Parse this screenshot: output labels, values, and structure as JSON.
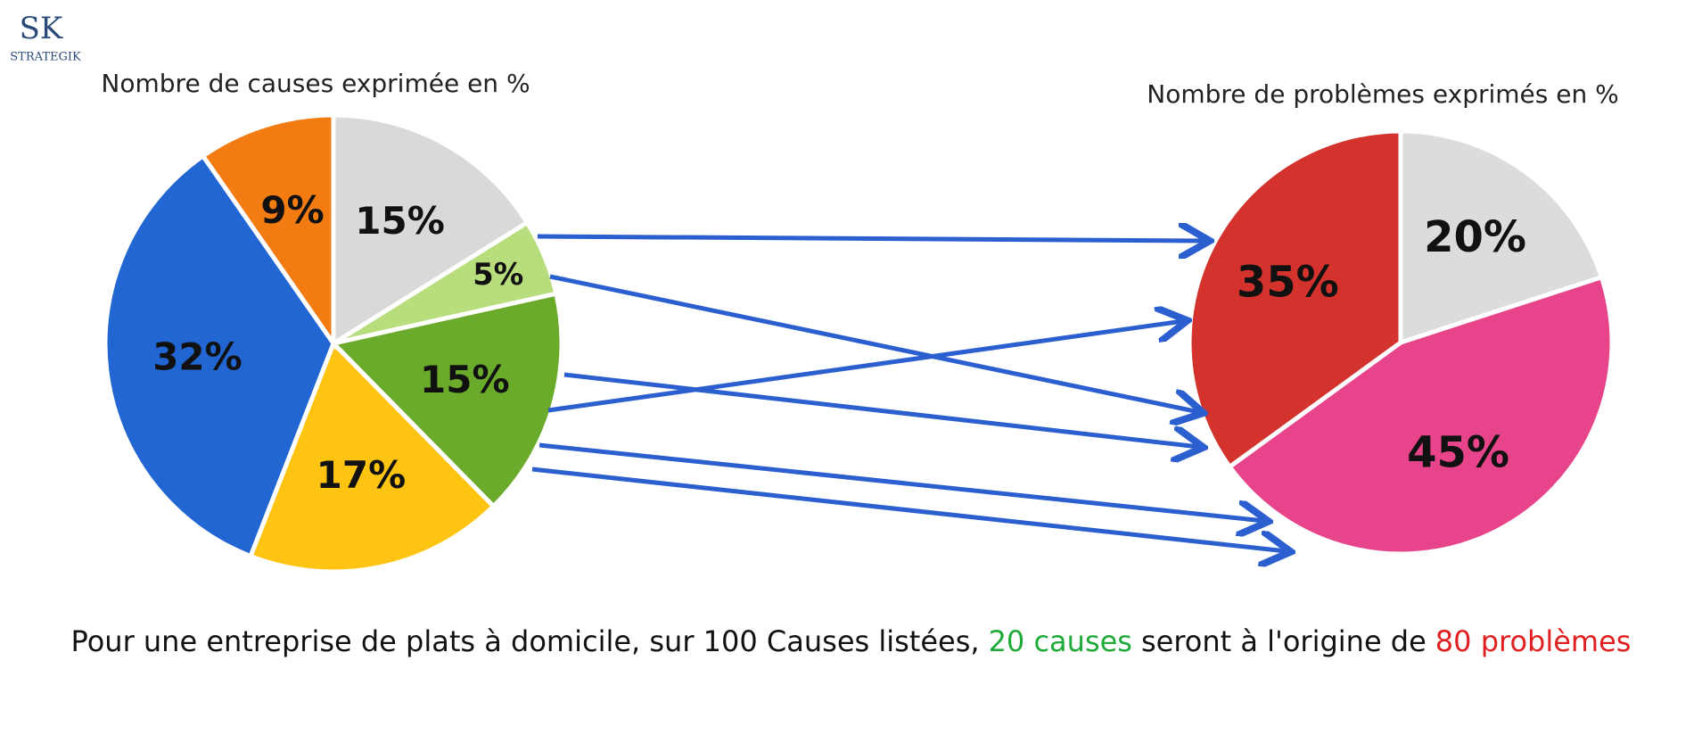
{
  "logo": {
    "mark": "SK",
    "name": "STRATEGIK"
  },
  "chart_data": [
    {
      "type": "pie",
      "title": "Nombre de causes exprimée en %",
      "categories": [
        null,
        null,
        null,
        null,
        null,
        null
      ],
      "values": [
        15,
        5,
        15,
        17,
        32,
        9
      ],
      "value_labels": [
        "15%",
        "5%",
        "15%",
        "17%",
        "32%",
        "9%"
      ],
      "colors": [
        "#d9d9d9",
        "#b8dd7c",
        "#6aab2c",
        "#ffc312",
        "#2166d2",
        "#f27b12"
      ]
    },
    {
      "type": "pie",
      "title": "Nombre de problèmes exprimés en %",
      "categories": [
        null,
        null,
        null
      ],
      "values": [
        20,
        45,
        35
      ],
      "value_labels": [
        "20%",
        "45%",
        "35%"
      ],
      "colors": [
        "#dcdcdc",
        "#e8448c",
        "#d3332c"
      ]
    }
  ],
  "caption": {
    "start": "Pour une entreprise de plats à domicile, sur 100 Causes listées,",
    "causes": "20 causes",
    "middle": "seront à l'origine de",
    "problems": "80 problèmes"
  }
}
